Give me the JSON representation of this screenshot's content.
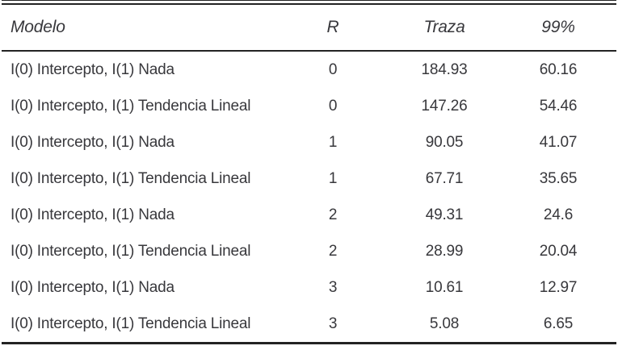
{
  "table": {
    "columns": {
      "modelo": "Modelo",
      "r": "R",
      "traza": "Traza",
      "crit99": "99%"
    },
    "rows": [
      {
        "modelo": "I(0) Intercepto, I(1) Nada",
        "r": "0",
        "traza": "184.93",
        "crit99": "60.16"
      },
      {
        "modelo": "I(0) Intercepto, I(1) Tendencia Lineal",
        "r": "0",
        "traza": "147.26",
        "crit99": "54.46"
      },
      {
        "modelo": "I(0) Intercepto, I(1) Nada",
        "r": "1",
        "traza": "90.05",
        "crit99": "41.07"
      },
      {
        "modelo": "I(0) Intercepto, I(1) Tendencia Lineal",
        "r": "1",
        "traza": "67.71",
        "crit99": "35.65"
      },
      {
        "modelo": "I(0) Intercepto, I(1) Nada",
        "r": "2",
        "traza": "49.31",
        "crit99": "24.6"
      },
      {
        "modelo": "I(0) Intercepto, I(1) Tendencia Lineal",
        "r": "2",
        "traza": "28.99",
        "crit99": "20.04"
      },
      {
        "modelo": "I(0) Intercepto, I(1) Nada",
        "r": "3",
        "traza": "10.61",
        "crit99": "12.97"
      },
      {
        "modelo": "I(0) Intercepto, I(1) Tendencia Lineal",
        "r": "3",
        "traza": "5.08",
        "crit99": "6.65"
      }
    ],
    "colors": {
      "text": "#38383c",
      "rule": "#232323",
      "background": "#ffffff"
    }
  }
}
